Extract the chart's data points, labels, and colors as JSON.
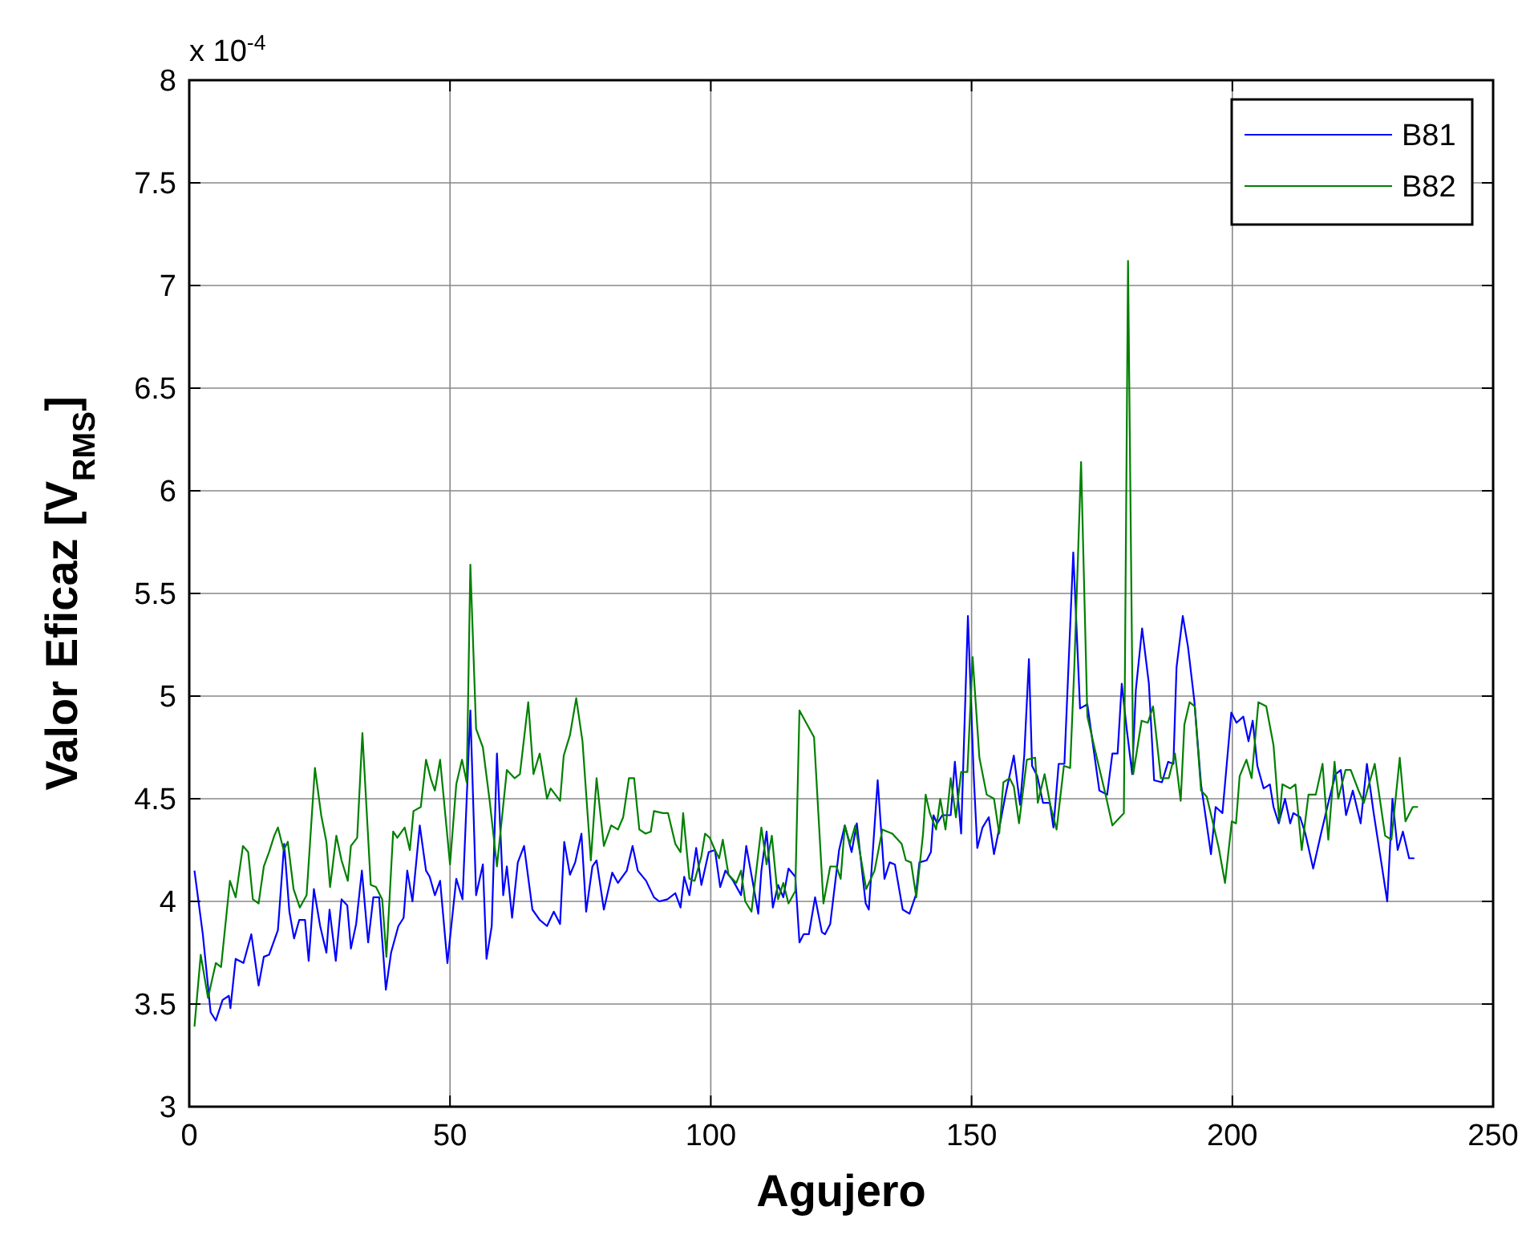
{
  "chart_data": {
    "type": "line",
    "xlabel": "Agujero",
    "ylabel": "Valor Eficaz [V$_{RMS}$]",
    "annotations": [
      "x 10$^{-4}$"
    ],
    "xlim": [
      0,
      250
    ],
    "xticks": [
      0,
      50,
      100,
      150,
      200,
      250
    ],
    "ylim": [
      3,
      8
    ],
    "yticks": [
      3,
      3.5,
      4,
      4.5,
      5,
      5.5,
      6,
      6.5,
      7,
      7.5,
      8
    ],
    "grid": true,
    "legend": "top right",
    "line_style": "solid",
    "marker": "none",
    "series": [
      {
        "name": "B81",
        "color": "#0000ff",
        "x": [
          1,
          2.6,
          4.1,
          5.1,
          6.4,
          7.6,
          7.9,
          8.9,
          10.4,
          11.9,
          13.3,
          14.3,
          15.3,
          17,
          18.2,
          19.2,
          20.1,
          21.1,
          22.2,
          22.9,
          23.9,
          25.1,
          26.3,
          26.9,
          28.1,
          29.2,
          30.3,
          31,
          32,
          33.1,
          34.3,
          35.3,
          36.4,
          37.7,
          38.7,
          40.1,
          41.1,
          41.8,
          42.8,
          44.2,
          45.4,
          46.1,
          47.1,
          48.1,
          49.5,
          51.2,
          52.4,
          53.9,
          55,
          56.3,
          57,
          58,
          59,
          60.2,
          60.9,
          61.9,
          63,
          64.2,
          65.8,
          67.2,
          68.6,
          69.9,
          71.1,
          71.9,
          73,
          74,
          75.2,
          76.1,
          77.3,
          78.1,
          79.5,
          81.1,
          82.2,
          83.9,
          85,
          86,
          87.6,
          89.1,
          90.1,
          91.7,
          93.2,
          94.2,
          94.9,
          95.9,
          97.2,
          98.2,
          99.6,
          100.8,
          101.8,
          102.8,
          104.3,
          105.8,
          106.8,
          108,
          109.1,
          109.7,
          110.7,
          111.9,
          112.9,
          113.9,
          114.9,
          116.2,
          117,
          117.8,
          118.8,
          120,
          121.3,
          121.9,
          122.9,
          124.6,
          125.7,
          127,
          128,
          129.7,
          130.3,
          132,
          133.3,
          134.3,
          135.3,
          136.8,
          138.1,
          139.3,
          140,
          141.4,
          142.2,
          142.7,
          143.4,
          144.4,
          146,
          146.8,
          148,
          149.3,
          150.4,
          151.1,
          152.1,
          153.3,
          154.3,
          155.1,
          156.6,
          158.1,
          159.3,
          160.1,
          161,
          161.6,
          162.6,
          163.7,
          165,
          165.7,
          166.7,
          167.8,
          169.5,
          170.8,
          172.2,
          174.5,
          176,
          177,
          178,
          178.8,
          179.7,
          180.8,
          181.5,
          182.7,
          184,
          185,
          186.5,
          187.7,
          188.7,
          189.3,
          190.5,
          191.5,
          192.7,
          194,
          195.9,
          196.8,
          198.1,
          199.8,
          200.8,
          202.1,
          203.1,
          203.9,
          204.8,
          206,
          207.2,
          207.9,
          208.9,
          210.1,
          211.1,
          211.7,
          213,
          214,
          215.5,
          217,
          218.5,
          219.8,
          220.8,
          221.8,
          223.1,
          224.6,
          225.8,
          227.1,
          228.5,
          229.7,
          230.7,
          231.7,
          232.7,
          233.9,
          234.9
        ],
        "values": [
          4.15,
          3.84,
          3.46,
          3.42,
          3.52,
          3.54,
          3.48,
          3.72,
          3.7,
          3.84,
          3.59,
          3.73,
          3.74,
          3.86,
          4.28,
          3.95,
          3.82,
          3.91,
          3.91,
          3.71,
          4.06,
          3.88,
          3.75,
          3.96,
          3.71,
          4.01,
          3.98,
          3.77,
          3.89,
          4.15,
          3.8,
          4.02,
          4.02,
          3.57,
          3.75,
          3.88,
          3.92,
          4.15,
          4,
          4.37,
          4.15,
          4.12,
          4.03,
          4.1,
          3.7,
          4.11,
          4.01,
          4.93,
          4.03,
          4.18,
          3.72,
          3.88,
          4.72,
          4.03,
          4.17,
          3.92,
          4.19,
          4.27,
          3.96,
          3.91,
          3.88,
          3.95,
          3.89,
          4.29,
          4.13,
          4.19,
          4.33,
          3.95,
          4.17,
          4.2,
          3.96,
          4.14,
          4.09,
          4.15,
          4.27,
          4.15,
          4.1,
          4.02,
          4,
          4.01,
          4.04,
          3.97,
          4.12,
          4.03,
          4.26,
          4.08,
          4.24,
          4.25,
          4.07,
          4.15,
          4.1,
          4.03,
          4.27,
          4.1,
          3.94,
          4.15,
          4.34,
          3.97,
          4.08,
          4.02,
          4.16,
          4.12,
          3.8,
          3.84,
          3.84,
          4.02,
          3.85,
          3.84,
          3.89,
          4.25,
          4.37,
          4.24,
          4.38,
          3.99,
          3.96,
          4.59,
          4.11,
          4.19,
          4.18,
          3.96,
          3.94,
          4.03,
          4.19,
          4.2,
          4.24,
          4.42,
          4.38,
          4.42,
          4.42,
          4.68,
          4.33,
          5.39,
          4.62,
          4.26,
          4.36,
          4.41,
          4.23,
          4.33,
          4.53,
          4.71,
          4.47,
          4.71,
          5.18,
          4.66,
          4.61,
          4.48,
          4.48,
          4.36,
          4.67,
          4.67,
          5.7,
          4.94,
          4.96,
          4.54,
          4.52,
          4.72,
          4.72,
          5.06,
          4.85,
          4.62,
          5.03,
          5.33,
          5.06,
          4.59,
          4.58,
          4.68,
          4.67,
          5.14,
          5.39,
          5.24,
          4.98,
          4.57,
          4.23,
          4.46,
          4.43,
          4.92,
          4.87,
          4.9,
          4.78,
          4.88,
          4.66,
          4.55,
          4.57,
          4.46,
          4.38,
          4.5,
          4.38,
          4.43,
          4.41,
          4.33,
          4.16,
          4.33,
          4.49,
          4.62,
          4.64,
          4.42,
          4.54,
          4.38,
          4.67,
          4.43,
          4.2,
          4,
          4.5,
          4.25,
          4.34,
          4.21,
          4.21
        ]
      },
      {
        "name": "B82",
        "color": "#008000",
        "x": [
          1,
          2.2,
          3.6,
          5.1,
          6.1,
          7.8,
          8.9,
          10.3,
          11.3,
          12.2,
          13.3,
          14.3,
          15.3,
          16.3,
          17,
          18.1,
          18.9,
          20,
          21.2,
          22.5,
          24.1,
          25.3,
          26.3,
          27,
          28.2,
          29.2,
          30.4,
          31,
          32.2,
          33.2,
          34.8,
          35.8,
          37,
          37.8,
          39.1,
          39.9,
          41.3,
          42.3,
          43,
          44.4,
          45.4,
          46.4,
          47.1,
          48.1,
          50,
          51.2,
          52.3,
          53.2,
          53.9,
          55,
          56.3,
          57.6,
          59,
          60.9,
          62.4,
          63.4,
          65,
          66,
          67.2,
          68.6,
          69.3,
          71.1,
          71.8,
          73,
          74.2,
          75.4,
          77,
          78.1,
          79.5,
          80.9,
          82.2,
          83.2,
          84.3,
          85.3,
          86.3,
          87.5,
          88.5,
          89.1,
          90.8,
          91.8,
          93.2,
          94.2,
          94.7,
          95.9,
          96.9,
          98.2,
          98.9,
          99.8,
          100.8,
          101.6,
          102.3,
          103.4,
          104.9,
          105.8,
          106.6,
          107.8,
          109.7,
          110.7,
          111.7,
          112.9,
          113.9,
          114.9,
          116.2,
          117,
          119.8,
          121.6,
          122.9,
          124.1,
          124.9,
          125.7,
          126.7,
          127.7,
          129.8,
          131.4,
          132.9,
          134.8,
          136.6,
          137.4,
          138.4,
          139.4,
          140.7,
          141.2,
          142,
          143.2,
          144,
          145,
          146,
          147,
          148,
          149.2,
          150.2,
          151.5,
          152.9,
          154.3,
          155.3,
          156.1,
          157.3,
          158.1,
          159.1,
          160.6,
          162.2,
          162.7,
          164,
          165.1,
          166.3,
          167.7,
          168.9,
          169.7,
          171,
          172.2,
          174.2,
          175.7,
          177,
          179.2,
          180,
          181,
          182.6,
          183.8,
          184.8,
          186.3,
          187.8,
          189,
          190.1,
          190.8,
          191.8,
          192.8,
          194,
          195.1,
          196.4,
          197.4,
          198.6,
          199.9,
          200.7,
          201.4,
          202.7,
          203.7,
          205,
          206.5,
          207.9,
          209,
          209.6,
          211.1,
          212.1,
          213.3,
          214.6,
          216,
          217.3,
          218.4,
          219.6,
          220.3,
          221.7,
          222.7,
          224.2,
          225.2,
          227.3,
          229.3,
          230.5,
          232.1,
          233.2,
          234.6,
          235.6
        ],
        "values": [
          3.39,
          3.74,
          3.53,
          3.7,
          3.68,
          4.1,
          4.02,
          4.27,
          4.24,
          4.01,
          3.99,
          4.17,
          4.24,
          4.32,
          4.36,
          4.25,
          4.29,
          4.06,
          3.97,
          4.03,
          4.65,
          4.42,
          4.29,
          4.07,
          4.32,
          4.2,
          4.1,
          4.27,
          4.31,
          4.82,
          4.08,
          4.07,
          4.01,
          3.73,
          4.34,
          4.31,
          4.36,
          4.25,
          4.44,
          4.46,
          4.69,
          4.59,
          4.54,
          4.69,
          4.18,
          4.57,
          4.69,
          4.58,
          5.64,
          4.84,
          4.75,
          4.49,
          4.17,
          4.64,
          4.6,
          4.62,
          4.97,
          4.62,
          4.72,
          4.5,
          4.55,
          4.49,
          4.71,
          4.81,
          4.99,
          4.78,
          4.2,
          4.6,
          4.27,
          4.37,
          4.35,
          4.41,
          4.6,
          4.6,
          4.35,
          4.33,
          4.34,
          4.44,
          4.43,
          4.43,
          4.28,
          4.24,
          4.43,
          4.11,
          4.1,
          4.22,
          4.33,
          4.31,
          4.25,
          4.21,
          4.3,
          4.13,
          4.09,
          4.15,
          4,
          3.95,
          4.36,
          4.18,
          4.32,
          4.01,
          4.09,
          3.99,
          4.05,
          4.93,
          4.8,
          3.99,
          4.17,
          4.17,
          4.11,
          4.37,
          4.28,
          4.37,
          4.06,
          4.15,
          4.35,
          4.33,
          4.28,
          4.2,
          4.19,
          4.02,
          4.33,
          4.52,
          4.43,
          4.35,
          4.5,
          4.35,
          4.6,
          4.41,
          4.63,
          4.63,
          5.19,
          4.7,
          4.52,
          4.5,
          4.33,
          4.58,
          4.6,
          4.56,
          4.38,
          4.69,
          4.7,
          4.48,
          4.62,
          4.47,
          4.35,
          4.66,
          4.65,
          5.14,
          6.14,
          4.9,
          4.68,
          4.52,
          4.37,
          4.43,
          7.12,
          4.62,
          4.88,
          4.87,
          4.95,
          4.6,
          4.6,
          4.72,
          4.49,
          4.86,
          4.97,
          4.95,
          4.54,
          4.51,
          4.37,
          4.26,
          4.09,
          4.39,
          4.38,
          4.61,
          4.69,
          4.6,
          4.97,
          4.95,
          4.76,
          4.39,
          4.57,
          4.55,
          4.57,
          4.25,
          4.52,
          4.52,
          4.67,
          4.3,
          4.68,
          4.5,
          4.64,
          4.64,
          4.54,
          4.48,
          4.67,
          4.32,
          4.3,
          4.7,
          4.39,
          4.46,
          4.46
        ]
      }
    ]
  }
}
